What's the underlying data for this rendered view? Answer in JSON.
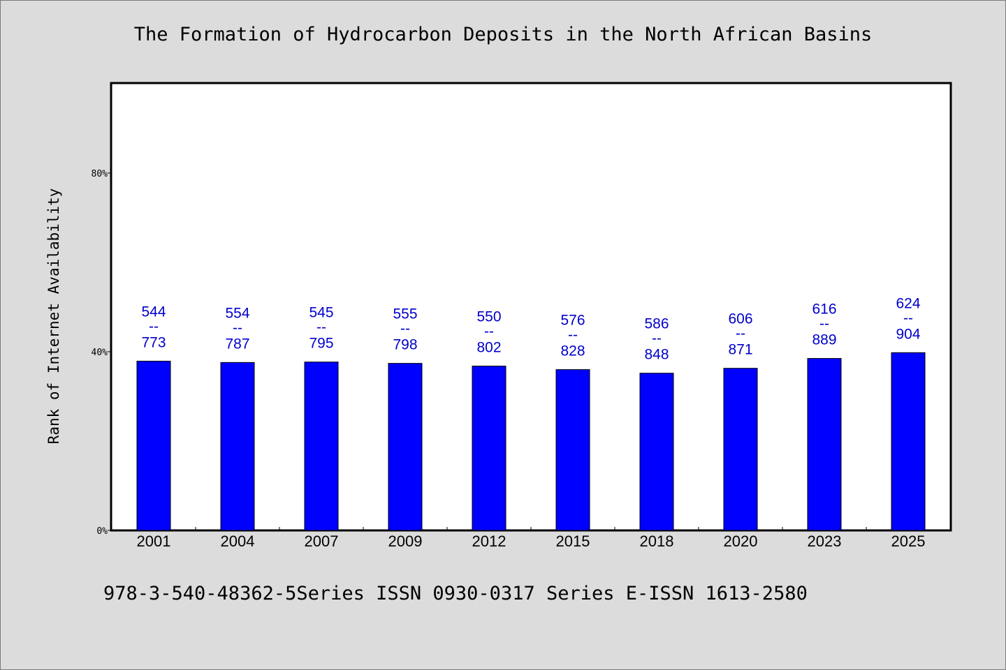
{
  "chart_data": {
    "type": "bar",
    "title": "The Formation of Hydrocarbon Deposits in the North African Basins",
    "ylabel": "Rank of Internet Availability",
    "xlabel": "",
    "ylim": [
      0,
      100
    ],
    "yticks": [
      0,
      40,
      80
    ],
    "ytick_labels": [
      "0%",
      "40%",
      "80%"
    ],
    "categories": [
      "2001",
      "2004",
      "2007",
      "2009",
      "2012",
      "2015",
      "2018",
      "2020",
      "2023",
      "2025"
    ],
    "values": [
      37.9,
      37.6,
      37.7,
      37.4,
      36.8,
      36.0,
      35.2,
      36.3,
      38.5,
      39.8
    ],
    "bar_labels": [
      [
        "544",
        "--",
        "773"
      ],
      [
        "554",
        "--",
        "787"
      ],
      [
        "545",
        "--",
        "795"
      ],
      [
        "555",
        "--",
        "798"
      ],
      [
        "550",
        "--",
        "802"
      ],
      [
        "576",
        "--",
        "828"
      ],
      [
        "586",
        "--",
        "848"
      ],
      [
        "606",
        "--",
        "871"
      ],
      [
        "616",
        "--",
        "889"
      ],
      [
        "624",
        "--",
        "904"
      ]
    ],
    "grid": false,
    "bar_color": "#0000ff",
    "label_color": "#0000cc"
  },
  "footer_text": "978-3-540-48362-5Series ISSN 0930-0317 Series E-ISSN 1613-2580"
}
